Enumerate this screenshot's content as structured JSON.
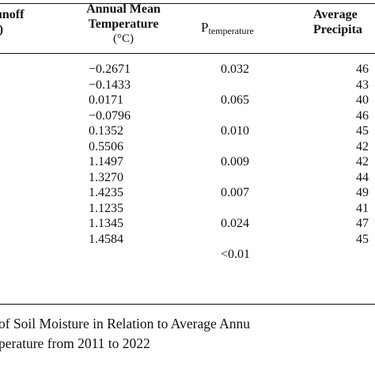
{
  "table": {
    "headers": {
      "runoff_line1": "unoff",
      "runoff_line2": "³)",
      "temp_line1": "Annual Mean",
      "temp_line2": "Temperature",
      "temp_line3": "(°C)",
      "p_main": "P",
      "p_sub": "temperature",
      "precip_line1": "Average",
      "precip_line2": "Precipita"
    },
    "temperature_values": [
      "−0.2671",
      "−0.1433",
      "0.0171",
      "−0.0796",
      "0.1352",
      "0.5506",
      "1.1497",
      "1.3270",
      "1.4235",
      "1.1235",
      "1.1345",
      "1.4584"
    ],
    "p_values": [
      "0.032",
      "",
      "0.065",
      "",
      "0.010",
      "",
      "0.009",
      "",
      "0.007",
      "",
      "0.024",
      "",
      "<0.01"
    ],
    "precip_values": [
      "46",
      "43",
      "40",
      "46",
      "45",
      "42",
      "42",
      "44",
      "49",
      "41",
      "47",
      "45"
    ]
  },
  "caption": {
    "line1": "of Soil Moisture in Relation to Average Annu",
    "line2": "perature from 2011 to 2022"
  }
}
